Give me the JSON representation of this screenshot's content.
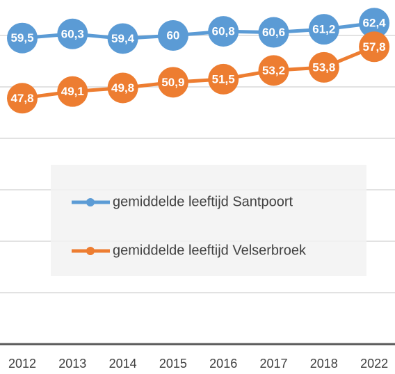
{
  "chart_data": {
    "type": "line",
    "categories": [
      "2012",
      "2013",
      "2014",
      "2015",
      "2016",
      "2017",
      "2018",
      "2022"
    ],
    "series": [
      {
        "name": "gemiddelde leeftijd Santpoort",
        "color": "#5b9bd5",
        "values": [
          59.5,
          60.3,
          59.4,
          60,
          60.8,
          60.6,
          61.2,
          62.4
        ],
        "value_labels": [
          "59,5",
          "60,3",
          "59,4",
          "60",
          "60,8",
          "60,6",
          "61,2",
          "62,4"
        ]
      },
      {
        "name": "gemiddelde leeftijd Velserbroek",
        "color": "#ed7d31",
        "values": [
          47.8,
          49.1,
          49.8,
          50.9,
          51.5,
          53.2,
          53.8,
          57.8
        ],
        "value_labels": [
          "47,8",
          "49,1",
          "49,8",
          "50,9",
          "51,5",
          "53,2",
          "53,8",
          "57,8"
        ]
      }
    ],
    "ylim": [
      0,
      70
    ],
    "yticks": [
      0,
      10,
      20,
      30,
      40,
      50,
      60,
      70
    ],
    "grid": true,
    "legend": "center"
  }
}
